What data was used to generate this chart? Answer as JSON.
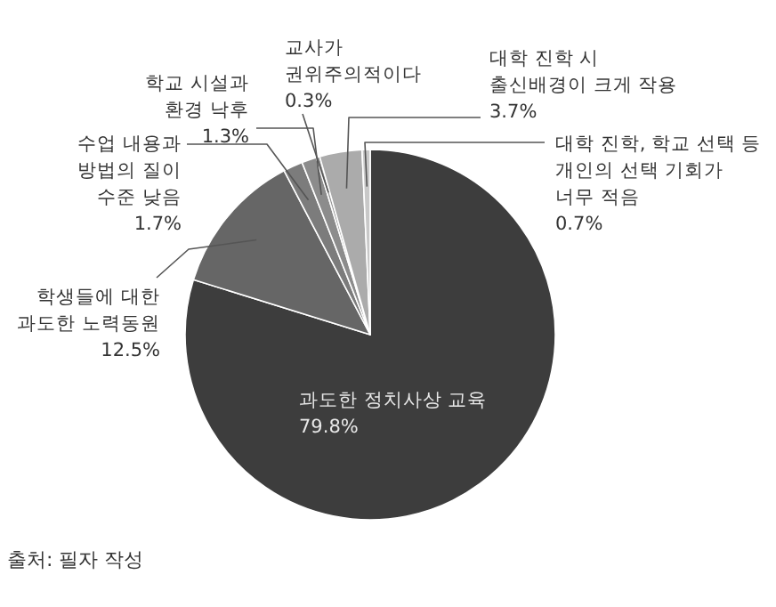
{
  "chart_data": {
    "type": "pie",
    "categories": [
      "과도한 정치사상 교육",
      "학생들에 대한\n과도한 노력동원",
      "수업 내용과\n방법의 질이\n수준 낮음",
      "학교 시설과\n환경 낙후",
      "교사가\n권위주의적이다",
      "대학 진학 시\n출신배경이 크게 작용",
      "대학 진학, 학교 선택 등\n개인의 선택 기회가\n너무 적음"
    ],
    "values": [
      79.8,
      12.5,
      1.7,
      1.3,
      0.3,
      3.7,
      0.7
    ],
    "value_labels": [
      "79.8%",
      "12.5%",
      "1.7%",
      "1.3%",
      "0.3%",
      "3.7%",
      "0.7%"
    ],
    "colors": [
      "#3d3d3d",
      "#666666",
      "#7c7c7c",
      "#8c8c8c",
      "#9a9a9a",
      "#ababab",
      "#c8c8c8"
    ],
    "annotations": [
      "출처: 필자 작성"
    ]
  }
}
